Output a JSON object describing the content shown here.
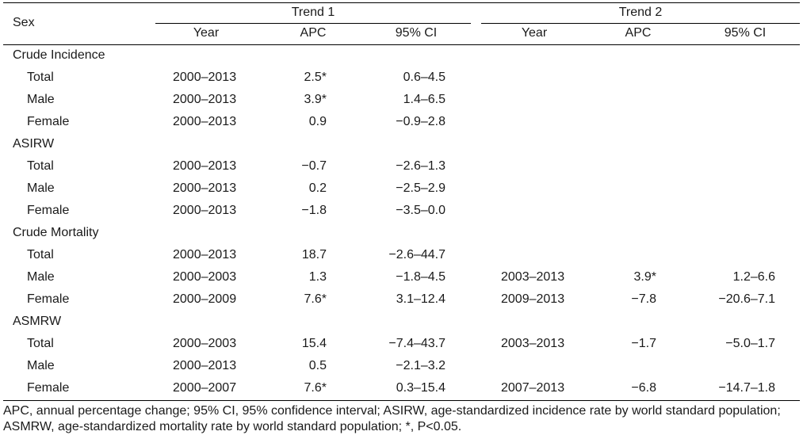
{
  "header": {
    "sex_label": "Sex",
    "trend1": "Trend 1",
    "trend2": "Trend 2",
    "year": "Year",
    "apc": "APC",
    "ci": "95% CI"
  },
  "sections": [
    {
      "title": "Crude Incidence",
      "rows": [
        {
          "sex": "Total",
          "t1_year": "2000–2013",
          "t1_apc": "2.5*",
          "t1_ci": "0.6–4.5",
          "t2_year": "",
          "t2_apc": "",
          "t2_ci": ""
        },
        {
          "sex": "Male",
          "t1_year": "2000–2013",
          "t1_apc": "3.9*",
          "t1_ci": "1.4–6.5",
          "t2_year": "",
          "t2_apc": "",
          "t2_ci": ""
        },
        {
          "sex": "Female",
          "t1_year": "2000–2013",
          "t1_apc": "0.9",
          "t1_ci": "−0.9–2.8",
          "t2_year": "",
          "t2_apc": "",
          "t2_ci": ""
        }
      ]
    },
    {
      "title": "ASIRW",
      "rows": [
        {
          "sex": "Total",
          "t1_year": "2000–2013",
          "t1_apc": "−0.7",
          "t1_ci": "−2.6–1.3",
          "t2_year": "",
          "t2_apc": "",
          "t2_ci": ""
        },
        {
          "sex": "Male",
          "t1_year": "2000–2013",
          "t1_apc": "0.2",
          "t1_ci": "−2.5–2.9",
          "t2_year": "",
          "t2_apc": "",
          "t2_ci": ""
        },
        {
          "sex": "Female",
          "t1_year": "2000–2013",
          "t1_apc": "−1.8",
          "t1_ci": "−3.5–0.0",
          "t2_year": "",
          "t2_apc": "",
          "t2_ci": ""
        }
      ]
    },
    {
      "title": "Crude Mortality",
      "rows": [
        {
          "sex": "Total",
          "t1_year": "2000–2013",
          "t1_apc": "18.7",
          "t1_ci": "−2.6–44.7",
          "t2_year": "",
          "t2_apc": "",
          "t2_ci": ""
        },
        {
          "sex": "Male",
          "t1_year": "2000–2003",
          "t1_apc": "1.3",
          "t1_ci": "−1.8–4.5",
          "t2_year": "2003–2013",
          "t2_apc": "3.9*",
          "t2_ci": "1.2–6.6"
        },
        {
          "sex": "Female",
          "t1_year": "2000–2009",
          "t1_apc": "7.6*",
          "t1_ci": "3.1–12.4",
          "t2_year": "2009–2013",
          "t2_apc": "−7.8",
          "t2_ci": "−20.6–7.1"
        }
      ]
    },
    {
      "title": "ASMRW",
      "rows": [
        {
          "sex": "Total",
          "t1_year": "2000–2003",
          "t1_apc": "15.4",
          "t1_ci": "−7.4–43.7",
          "t2_year": "2003–2013",
          "t2_apc": "−1.7",
          "t2_ci": "−5.0–1.7"
        },
        {
          "sex": "Male",
          "t1_year": "2000–2013",
          "t1_apc": "0.5",
          "t1_ci": "−2.1–3.2",
          "t2_year": "",
          "t2_apc": "",
          "t2_ci": ""
        },
        {
          "sex": "Female",
          "t1_year": "2000–2007",
          "t1_apc": "7.6*",
          "t1_ci": "0.3–15.4",
          "t2_year": "2007–2013",
          "t2_apc": "−6.8",
          "t2_ci": "−14.7–1.8"
        }
      ]
    }
  ],
  "footnote": "APC, annual percentage change; 95% CI, 95% confidence interval; ASIRW, age-standardized incidence rate by world standard population; ASMRW, age-standardized mortality rate by world standard population; *, P<0.05."
}
